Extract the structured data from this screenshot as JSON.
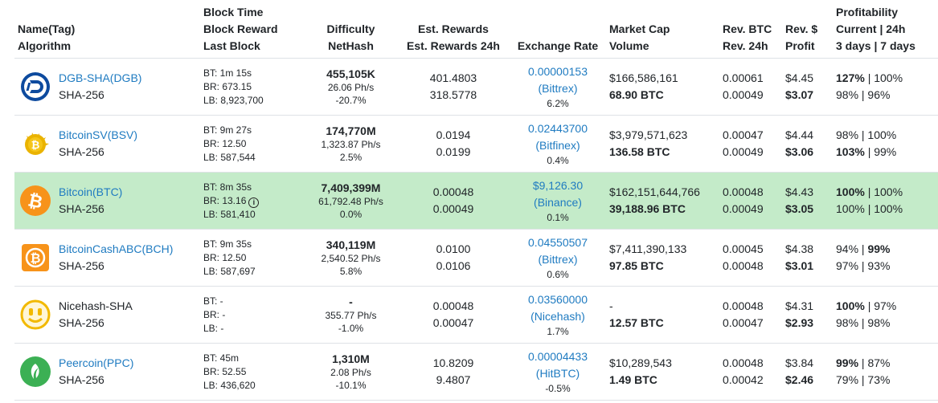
{
  "headers": {
    "name": [
      "Name(Tag)",
      "Algorithm"
    ],
    "block": [
      "Block Time",
      "Block Reward",
      "Last Block"
    ],
    "difficulty": [
      "Difficulty",
      "NetHash"
    ],
    "est": [
      "Est. Rewards",
      "Est. Rewards 24h"
    ],
    "exchange": "Exchange Rate",
    "market": [
      "Market Cap",
      "Volume"
    ],
    "revbtc": [
      "Rev. BTC",
      "Rev. 24h"
    ],
    "revusd": [
      "Rev. $",
      "Profit"
    ],
    "profit": [
      "Profitability",
      "Current | 24h",
      "3 days | 7 days"
    ]
  },
  "rows": [
    {
      "name": "DGB-SHA(DGB)",
      "algo": "SHA-256",
      "is_link": true,
      "icon": "digibyte-icon",
      "bt": "BT: 1m 15s",
      "br": "BR: 673.15",
      "lb": "LB: 8,923,700",
      "difficulty": "455,105K",
      "nethash": "26.06 Ph/s",
      "diffchange": "-20.7%",
      "est": "401.4803",
      "est24": "318.5778",
      "rate": "0.00000153",
      "exchange": "(Bittrex)",
      "ratechange": "6.2%",
      "marketcap": "$166,586,161",
      "volume": "68.90 BTC",
      "revbtc": "0.00061",
      "rev24": "0.00049",
      "revusd": "$4.45",
      "profit": "$3.07",
      "p_cur": "127%",
      "p_24": " | 100%",
      "p_3d": "98% | 96%",
      "p_7d": ""
    },
    {
      "name": "BitcoinSV(BSV)",
      "algo": "SHA-256",
      "is_link": true,
      "icon": "bitcoinsv-icon",
      "bt": "BT: 9m 27s",
      "br": "BR: 12.50",
      "lb": "LB: 587,544",
      "difficulty": "174,770M",
      "nethash": "1,323.87 Ph/s",
      "diffchange": "2.5%",
      "est": "0.0194",
      "est24": "0.0199",
      "rate": "0.02443700",
      "exchange": "(Bitfinex)",
      "ratechange": "0.4%",
      "marketcap": "$3,979,571,623",
      "volume": "136.58 BTC",
      "revbtc": "0.00047",
      "rev24": "0.00049",
      "revusd": "$4.44",
      "profit": "$3.06",
      "p_cur": "98% | 100%",
      "p_24": "",
      "p_3d": "103%",
      "p_7d": " | 99%"
    },
    {
      "name": "Bitcoin(BTC)",
      "algo": "SHA-256",
      "is_link": true,
      "icon": "bitcoin-icon",
      "bt": "BT: 8m 35s",
      "br": "BR: 13.16",
      "lb": "LB: 581,410",
      "difficulty": "7,409,399M",
      "nethash": "61,792.48 Ph/s",
      "diffchange": "0.0%",
      "est": "0.00048",
      "est24": "0.00049",
      "rate": "$9,126.30",
      "exchange": "(Binance)",
      "ratechange": "0.1%",
      "marketcap": "$162,151,644,766",
      "volume": "39,188.96 BTC",
      "revbtc": "0.00048",
      "rev24": "0.00049",
      "revusd": "$4.43",
      "profit": "$3.05",
      "p_cur": "100%",
      "p_24": " | 100%",
      "p_3d": "100% | 100%",
      "p_7d": ""
    },
    {
      "name": "BitcoinCashABC(BCH)",
      "algo": "SHA-256",
      "is_link": true,
      "icon": "bitcoincash-icon",
      "bt": "BT: 9m 35s",
      "br": "BR: 12.50",
      "lb": "LB: 587,697",
      "difficulty": "340,119M",
      "nethash": "2,540.52 Ph/s",
      "diffchange": "5.8%",
      "est": "0.0100",
      "est24": "0.0106",
      "rate": "0.04550507",
      "exchange": "(Bittrex)",
      "ratechange": "0.6%",
      "marketcap": "$7,411,390,133",
      "volume": "97.85 BTC",
      "revbtc": "0.00045",
      "rev24": "0.00048",
      "revusd": "$4.38",
      "profit": "$3.01",
      "p_cur": "94% | ",
      "p_24": "99%",
      "p_3d": "97% | 93%",
      "p_7d": ""
    },
    {
      "name": "Nicehash-SHA",
      "algo": "SHA-256",
      "is_link": false,
      "icon": "nicehash-icon",
      "bt": "BT: -",
      "br": "BR: -",
      "lb": "LB: -",
      "difficulty": "-",
      "nethash": "355.77 Ph/s",
      "diffchange": "-1.0%",
      "est": "0.00048",
      "est24": "0.00047",
      "rate": "0.03560000",
      "exchange": "(Nicehash)",
      "ratechange": "1.7%",
      "marketcap": "-",
      "volume": "12.57 BTC",
      "revbtc": "0.00048",
      "rev24": "0.00047",
      "revusd": "$4.31",
      "profit": "$2.93",
      "p_cur": "100%",
      "p_24": " | 97%",
      "p_3d": "98% | 98%",
      "p_7d": ""
    },
    {
      "name": "Peercoin(PPC)",
      "algo": "SHA-256",
      "is_link": true,
      "icon": "peercoin-icon",
      "bt": "BT: 45m",
      "br": "BR: 52.55",
      "lb": "LB: 436,620",
      "difficulty": "1,310M",
      "nethash": "2.08 Ph/s",
      "diffchange": "-10.1%",
      "est": "10.8209",
      "est24": "9.4807",
      "rate": "0.00004433",
      "exchange": "(HitBTC)",
      "ratechange": "-0.5%",
      "marketcap": "$10,289,543",
      "volume": "1.49 BTC",
      "revbtc": "0.00048",
      "rev24": "0.00042",
      "revusd": "$3.84",
      "profit": "$2.46",
      "p_cur": "99%",
      "p_24": " | 87%",
      "p_3d": "79% | 73%",
      "p_7d": ""
    }
  ],
  "colors": {
    "link": "#1f7bc1",
    "highlight": "#c4ebc9",
    "dgb": "#0066cc",
    "bsv": "#eab300",
    "btc": "#f7931a",
    "bch": "#f7931a",
    "nicehash": "#fbbf24",
    "ppc": "#3cb054"
  }
}
